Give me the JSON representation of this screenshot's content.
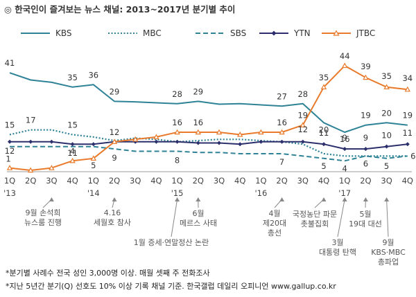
{
  "chart_data": {
    "type": "line",
    "title": "◎  한국인이 즐겨보는 뉴스 채널: 2013~2017년 분기별 추이",
    "x": [
      "1Q",
      "2Q",
      "3Q",
      "4Q",
      "1Q",
      "2Q",
      "3Q",
      "4Q",
      "1Q",
      "2Q",
      "3Q",
      "4Q",
      "1Q",
      "2Q",
      "3Q",
      "4Q",
      "1Q",
      "2Q",
      "3Q",
      "4Q"
    ],
    "year_labels": [
      {
        "index": 0,
        "label": "'13"
      },
      {
        "index": 4,
        "label": "'14"
      },
      {
        "index": 8,
        "label": "'15"
      },
      {
        "index": 12,
        "label": "'16"
      },
      {
        "index": 16,
        "label": "'17"
      }
    ],
    "ylim": [
      0,
      46
    ],
    "grid": false,
    "legend_position": "top",
    "series": [
      {
        "name": "KBS",
        "color": "#2E8296",
        "style": "solid",
        "values": [
          41,
          38,
          37,
          35,
          36,
          29,
          28.8,
          28.4,
          28,
          29,
          27.8,
          28,
          27.5,
          27,
          28,
          20,
          16,
          19,
          20,
          19
        ],
        "labels": {
          "0": "41",
          "3": "35",
          "4": "36",
          "5": "29",
          "8": "28",
          "9": "29",
          "13": "27",
          "14": "28",
          "15": "20",
          "16": "16",
          "17": "19",
          "18": "20",
          "19": "19"
        }
      },
      {
        "name": "MBC",
        "color": "#2E8296",
        "style": "dotted",
        "values": [
          15,
          17,
          17,
          15,
          14,
          12.5,
          13.5,
          13,
          12,
          12.5,
          13,
          13,
          12.5,
          12,
          11,
          7,
          6,
          6,
          6,
          6
        ],
        "labels": {
          "0": "15",
          "1": "17",
          "3": "15",
          "19": "6"
        }
      },
      {
        "name": "SBS",
        "color": "#2E8296",
        "style": "dashed",
        "values": [
          10,
          10,
          10,
          10,
          10,
          9,
          8,
          8,
          8,
          7.5,
          7.5,
          7,
          7,
          7,
          6,
          5,
          4,
          6,
          5,
          6
        ],
        "labels": {
          "5": "9",
          "8": "8",
          "13": "7",
          "15": "5",
          "16": "4",
          "17": "6",
          "18": "5"
        }
      },
      {
        "name": "YTN",
        "color": "#2B2F6B",
        "style": "solid",
        "values": [
          12,
          12,
          12,
          11,
          11,
          12,
          12,
          12,
          12,
          11.5,
          11.5,
          11,
          12,
          12,
          12,
          11,
          9,
          9,
          10,
          11
        ],
        "labels": {
          "0": "12",
          "3": "11",
          "14": "12",
          "15": "11",
          "16": "9",
          "17": "9",
          "18": "10",
          "19": "11"
        }
      },
      {
        "name": "JTBC",
        "color": "#E97A2B",
        "style": "solid",
        "values": [
          1,
          0,
          1,
          4,
          5,
          12,
          13,
          14,
          16,
          16,
          16,
          15,
          16,
          16,
          19,
          35,
          44,
          39,
          35,
          34
        ],
        "labels": {
          "0": "1",
          "3": "4",
          "4": "5",
          "5": "12",
          "8": "16",
          "9": "16",
          "13": "16",
          "14": "19",
          "15": "35",
          "16": "44",
          "17": "39",
          "18": "35",
          "19": "34"
        }
      }
    ],
    "annotations": [
      {
        "index": 2,
        "lines": [
          "9월 손석희",
          "뉴스룸 진행"
        ]
      },
      {
        "index": 5,
        "lines": [
          "4.16",
          "세월호 참사"
        ]
      },
      {
        "index": 8,
        "lines": [
          "1월 증세·연말정산 논란"
        ]
      },
      {
        "index": 9,
        "lines": [
          "6월",
          "메르스 사태"
        ]
      },
      {
        "index": 13,
        "lines": [
          "4월",
          "제20대",
          "총선"
        ]
      },
      {
        "index": 15,
        "lines": [
          "국정농단 파문",
          "촛불집회"
        ]
      },
      {
        "index": 16,
        "lines": [
          "3월",
          "대통령 탄핵"
        ]
      },
      {
        "index": 17,
        "lines": [
          "5월",
          "19대 대선"
        ]
      },
      {
        "index": 18,
        "lines": [
          "9월",
          "KBS·MBC",
          "총파업"
        ]
      }
    ],
    "footnotes": [
      "*분기별 사례수 전국 성인 3,000명 이상. 매월 셋째 주 전화조사",
      "*지난 5년간 분기(Q) 선호도 10% 이상 기록 채널 기준. 한국갤럽 데일리 오피니언 www.gallup.co.kr"
    ]
  }
}
